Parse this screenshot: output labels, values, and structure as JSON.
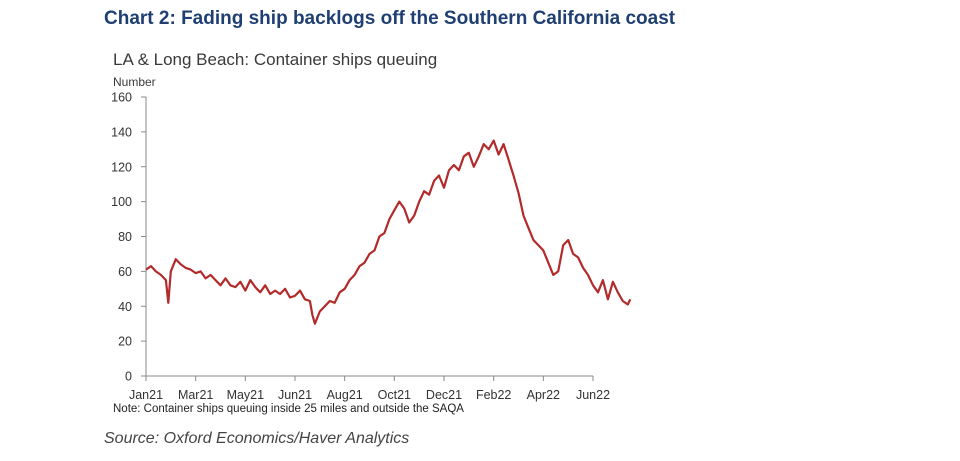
{
  "heading": "Chart 2: Fading ship backlogs off the Southern California coast",
  "source": "Source: Oxford Economics/Haver Analytics",
  "chart_data": {
    "type": "line",
    "title": "LA & Long Beach: Container ships queuing",
    "ylabel": "Number",
    "xlabel": "",
    "note": "Note: Container ships queuing inside 25 miles and outside the SAQA",
    "ylim": [
      0,
      160
    ],
    "yticks": [
      "0",
      "20",
      "40",
      "60",
      "80",
      "100",
      "120",
      "140",
      "160"
    ],
    "xticks": [
      "Jan21",
      "Mar21",
      "May21",
      "Jun21",
      "Aug21",
      "Oct21",
      "Dec21",
      "Feb22",
      "Apr22",
      "Jun22"
    ],
    "grid": false,
    "series": [
      {
        "name": "Container ships queuing",
        "color": "#b22a2a",
        "points": [
          [
            0.0,
            61
          ],
          [
            0.1,
            63
          ],
          [
            0.2,
            60
          ],
          [
            0.3,
            58
          ],
          [
            0.4,
            55
          ],
          [
            0.45,
            42
          ],
          [
            0.5,
            60
          ],
          [
            0.6,
            67
          ],
          [
            0.7,
            64
          ],
          [
            0.8,
            62
          ],
          [
            0.9,
            61
          ],
          [
            1.0,
            59
          ],
          [
            1.1,
            60
          ],
          [
            1.2,
            56
          ],
          [
            1.3,
            58
          ],
          [
            1.4,
            55
          ],
          [
            1.5,
            52
          ],
          [
            1.6,
            56
          ],
          [
            1.7,
            52
          ],
          [
            1.8,
            51
          ],
          [
            1.9,
            54
          ],
          [
            2.0,
            49
          ],
          [
            2.1,
            55
          ],
          [
            2.2,
            51
          ],
          [
            2.3,
            48
          ],
          [
            2.4,
            52
          ],
          [
            2.5,
            47
          ],
          [
            2.6,
            49
          ],
          [
            2.7,
            47
          ],
          [
            2.8,
            50
          ],
          [
            2.9,
            45
          ],
          [
            3.0,
            46
          ],
          [
            3.1,
            49
          ],
          [
            3.2,
            44
          ],
          [
            3.3,
            43
          ],
          [
            3.35,
            35
          ],
          [
            3.4,
            30
          ],
          [
            3.5,
            37
          ],
          [
            3.6,
            40
          ],
          [
            3.7,
            43
          ],
          [
            3.8,
            42
          ],
          [
            3.9,
            48
          ],
          [
            4.0,
            50
          ],
          [
            4.1,
            55
          ],
          [
            4.2,
            58
          ],
          [
            4.3,
            63
          ],
          [
            4.4,
            65
          ],
          [
            4.5,
            70
          ],
          [
            4.6,
            72
          ],
          [
            4.7,
            80
          ],
          [
            4.8,
            82
          ],
          [
            4.9,
            90
          ],
          [
            5.0,
            95
          ],
          [
            5.1,
            100
          ],
          [
            5.2,
            96
          ],
          [
            5.3,
            88
          ],
          [
            5.4,
            92
          ],
          [
            5.5,
            100
          ],
          [
            5.6,
            106
          ],
          [
            5.7,
            104
          ],
          [
            5.8,
            112
          ],
          [
            5.9,
            115
          ],
          [
            6.0,
            108
          ],
          [
            6.1,
            118
          ],
          [
            6.2,
            121
          ],
          [
            6.3,
            118
          ],
          [
            6.4,
            126
          ],
          [
            6.5,
            128
          ],
          [
            6.6,
            120
          ],
          [
            6.7,
            126
          ],
          [
            6.8,
            133
          ],
          [
            6.9,
            130
          ],
          [
            7.0,
            135
          ],
          [
            7.1,
            127
          ],
          [
            7.2,
            133
          ],
          [
            7.3,
            124
          ],
          [
            7.4,
            115
          ],
          [
            7.5,
            105
          ],
          [
            7.6,
            92
          ],
          [
            7.7,
            85
          ],
          [
            7.8,
            78
          ],
          [
            7.9,
            75
          ],
          [
            8.0,
            72
          ],
          [
            8.1,
            65
          ],
          [
            8.2,
            58
          ],
          [
            8.3,
            60
          ],
          [
            8.4,
            75
          ],
          [
            8.5,
            78
          ],
          [
            8.6,
            70
          ],
          [
            8.7,
            68
          ],
          [
            8.8,
            62
          ],
          [
            8.9,
            58
          ],
          [
            9.0,
            52
          ],
          [
            9.1,
            48
          ],
          [
            9.2,
            55
          ],
          [
            9.3,
            44
          ],
          [
            9.4,
            54
          ],
          [
            9.5,
            48
          ],
          [
            9.6,
            43
          ],
          [
            9.7,
            41
          ],
          [
            9.75,
            44
          ]
        ]
      }
    ]
  }
}
